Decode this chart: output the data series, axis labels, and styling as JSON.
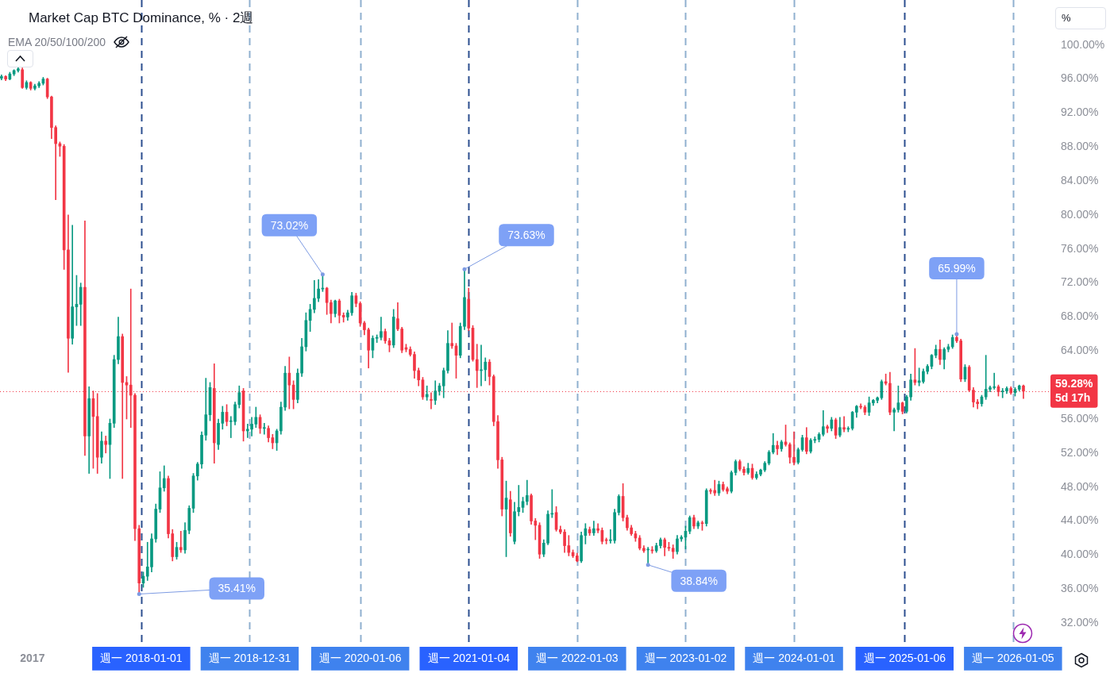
{
  "chart_data": {
    "type": "candlestick",
    "title": "Market Cap BTC Dominance, % · 2週",
    "subtitle": "EMA 20/50/100/200",
    "ylabel": "%",
    "x": [
      "2016-09-19",
      "2016-10-03",
      "2016-10-17",
      "2016-10-31",
      "2016-11-14",
      "2016-11-28",
      "2016-12-12",
      "2016-12-26",
      "2017-01-09",
      "2017-01-23",
      "2017-02-06",
      "2017-02-20",
      "2017-03-06",
      "2017-03-20",
      "2017-04-03",
      "2017-04-17",
      "2017-05-01",
      "2017-05-15",
      "2017-05-29",
      "2017-06-12",
      "2017-06-26",
      "2017-07-10",
      "2017-07-24",
      "2017-08-07",
      "2017-08-21",
      "2017-09-04",
      "2017-09-18",
      "2017-10-02",
      "2017-10-16",
      "2017-10-30",
      "2017-11-13",
      "2017-11-27",
      "2017-12-11",
      "2017-12-25",
      "2018-01-08",
      "2018-01-22",
      "2018-02-05",
      "2018-02-19",
      "2018-03-05",
      "2018-03-19",
      "2018-04-02",
      "2018-04-16",
      "2018-04-30",
      "2018-05-14",
      "2018-05-28",
      "2018-06-11",
      "2018-06-25",
      "2018-07-09",
      "2018-07-23",
      "2018-08-06",
      "2018-08-20",
      "2018-09-03",
      "2018-09-17",
      "2018-10-01",
      "2018-10-15",
      "2018-10-29",
      "2018-11-12",
      "2018-11-26",
      "2018-12-10",
      "2018-12-24",
      "2019-01-07",
      "2019-01-21",
      "2019-02-04",
      "2019-02-18",
      "2019-03-04",
      "2019-03-18",
      "2019-04-01",
      "2019-04-15",
      "2019-04-29",
      "2019-05-13",
      "2019-05-27",
      "2019-06-10",
      "2019-06-24",
      "2019-07-08",
      "2019-07-22",
      "2019-08-05",
      "2019-08-19",
      "2019-09-02",
      "2019-09-16",
      "2019-09-30",
      "2019-10-14",
      "2019-10-28",
      "2019-11-11",
      "2019-11-25",
      "2019-12-09",
      "2019-12-23",
      "2020-01-06",
      "2020-01-20",
      "2020-02-03",
      "2020-02-17",
      "2020-03-02",
      "2020-03-16",
      "2020-03-30",
      "2020-04-13",
      "2020-04-27",
      "2020-05-11",
      "2020-05-25",
      "2020-06-08",
      "2020-06-22",
      "2020-07-06",
      "2020-07-20",
      "2020-08-03",
      "2020-08-17",
      "2020-08-31",
      "2020-09-14",
      "2020-09-28",
      "2020-10-12",
      "2020-10-26",
      "2020-11-09",
      "2020-11-23",
      "2020-12-07",
      "2020-12-21",
      "2021-01-04",
      "2021-01-18",
      "2021-02-01",
      "2021-02-15",
      "2021-03-01",
      "2021-03-15",
      "2021-03-29",
      "2021-04-12",
      "2021-04-26",
      "2021-05-10",
      "2021-05-24",
      "2021-06-07",
      "2021-06-21",
      "2021-07-05",
      "2021-07-19",
      "2021-08-02",
      "2021-08-16",
      "2021-08-30",
      "2021-09-13",
      "2021-09-27",
      "2021-10-11",
      "2021-10-25",
      "2021-11-08",
      "2021-11-22",
      "2021-12-06",
      "2021-12-20",
      "2022-01-03",
      "2022-01-17",
      "2022-01-31",
      "2022-02-14",
      "2022-02-28",
      "2022-03-14",
      "2022-03-28",
      "2022-04-11",
      "2022-04-25",
      "2022-05-09",
      "2022-05-23",
      "2022-06-06",
      "2022-06-20",
      "2022-07-04",
      "2022-07-18",
      "2022-08-01",
      "2022-08-15",
      "2022-08-29",
      "2022-09-12",
      "2022-09-26",
      "2022-10-10",
      "2022-10-24",
      "2022-11-07",
      "2022-11-21",
      "2022-12-05",
      "2022-12-19",
      "2023-01-02",
      "2023-01-16",
      "2023-01-30",
      "2023-02-13",
      "2023-02-27",
      "2023-03-13",
      "2023-03-27",
      "2023-04-10",
      "2023-04-24",
      "2023-05-08",
      "2023-05-22",
      "2023-06-05",
      "2023-06-19",
      "2023-07-03",
      "2023-07-17",
      "2023-07-31",
      "2023-08-14",
      "2023-08-28",
      "2023-09-11",
      "2023-09-25",
      "2023-10-09",
      "2023-10-23",
      "2023-11-06",
      "2023-11-20",
      "2023-12-04",
      "2023-12-18",
      "2024-01-01",
      "2024-01-15",
      "2024-01-29",
      "2024-02-12",
      "2024-02-26",
      "2024-03-11",
      "2024-03-25",
      "2024-04-08",
      "2024-04-22",
      "2024-05-06",
      "2024-05-20",
      "2024-06-03",
      "2024-06-17",
      "2024-07-01",
      "2024-07-15",
      "2024-07-29",
      "2024-08-12",
      "2024-08-26",
      "2024-09-09",
      "2024-09-23",
      "2024-10-07",
      "2024-10-21",
      "2024-11-04",
      "2024-11-18",
      "2024-12-02",
      "2024-12-16",
      "2024-12-30",
      "2025-01-13",
      "2025-01-27",
      "2025-02-10",
      "2025-02-24",
      "2025-03-10",
      "2025-03-24",
      "2025-04-07",
      "2025-04-21",
      "2025-05-05",
      "2025-05-19",
      "2025-06-02",
      "2025-06-16",
      "2025-06-30",
      "2025-07-14",
      "2025-07-28",
      "2025-08-11",
      "2025-08-25",
      "2025-09-08",
      "2025-09-22",
      "2025-10-06",
      "2025-10-20",
      "2025-11-03",
      "2025-11-17",
      "2025-12-01",
      "2025-12-15",
      "2025-12-29",
      "2026-01-12",
      "2026-01-26",
      "2026-02-09"
    ],
    "ohlc": [
      [
        96.1,
        96.5,
        95.9,
        96.3
      ],
      [
        96.3,
        96.4,
        95.8,
        96.0
      ],
      [
        96.0,
        96.8,
        95.9,
        96.6
      ],
      [
        96.6,
        97.1,
        96.4,
        97.0
      ],
      [
        97.0,
        97.4,
        96.8,
        97.2
      ],
      [
        97.1,
        97.3,
        94.9,
        95.0
      ],
      [
        95.0,
        95.8,
        94.8,
        95.6
      ],
      [
        95.6,
        95.7,
        94.7,
        94.9
      ],
      [
        94.9,
        95.4,
        94.7,
        95.2
      ],
      [
        95.2,
        95.7,
        95.0,
        95.5
      ],
      [
        95.5,
        96.2,
        95.3,
        96.0
      ],
      [
        96.0,
        96.1,
        93.7,
        93.9
      ],
      [
        93.9,
        94.0,
        89.0,
        90.3
      ],
      [
        90.3,
        90.5,
        81.8,
        88.4
      ],
      [
        88.4,
        88.6,
        86.9,
        88.1
      ],
      [
        88.1,
        88.3,
        73.6,
        75.9
      ],
      [
        75.9,
        80.0,
        61.5,
        65.5
      ],
      [
        65.5,
        78.8,
        64.8,
        69.2
      ],
      [
        69.2,
        72.9,
        67.0,
        69.5
      ],
      [
        69.5,
        72.0,
        67.0,
        71.5
      ],
      [
        71.5,
        79.3,
        51.7,
        54.0
      ],
      [
        54.0,
        59.8,
        49.6,
        58.4
      ],
      [
        58.4,
        59.3,
        50.2,
        56.3
      ],
      [
        56.3,
        59.0,
        49.6,
        51.5
      ],
      [
        51.5,
        54.5,
        50.8,
        53.4
      ],
      [
        53.4,
        54.0,
        52.0,
        53.0
      ],
      [
        53.0,
        56.0,
        49.0,
        55.5
      ],
      [
        55.5,
        63.5,
        55.0,
        63.0
      ],
      [
        63.0,
        68.0,
        62.5,
        65.7
      ],
      [
        65.7,
        66.0,
        49.0,
        60.3
      ],
      [
        60.3,
        61.0,
        56.0,
        60.0
      ],
      [
        60.0,
        71.3,
        55.0,
        58.8
      ],
      [
        58.8,
        59.0,
        41.7,
        43.1
      ],
      [
        43.1,
        43.5,
        35.41,
        36.7
      ],
      [
        36.7,
        38.0,
        36.2,
        37.5
      ],
      [
        37.5,
        41.5,
        37.0,
        38.6
      ],
      [
        38.6,
        42.5,
        38.0,
        41.9
      ],
      [
        41.9,
        46.0,
        41.5,
        45.4
      ],
      [
        45.4,
        49.8,
        45.0,
        47.9
      ],
      [
        47.9,
        50.5,
        47.5,
        49.0
      ],
      [
        49.0,
        49.3,
        42.0,
        42.5
      ],
      [
        42.5,
        43.0,
        39.3,
        39.8
      ],
      [
        39.8,
        41.5,
        39.5,
        40.9
      ],
      [
        40.9,
        42.8,
        40.3,
        40.6
      ],
      [
        40.6,
        43.8,
        40.2,
        42.9
      ],
      [
        42.9,
        45.8,
        42.5,
        45.5
      ],
      [
        45.5,
        49.6,
        45.0,
        49.3
      ],
      [
        49.3,
        50.9,
        48.8,
        50.7
      ],
      [
        50.7,
        54.5,
        50.2,
        54.1
      ],
      [
        54.1,
        60.8,
        53.5,
        56.5
      ],
      [
        56.5,
        60.3,
        55.8,
        59.7
      ],
      [
        59.6,
        62.5,
        50.8,
        53.2
      ],
      [
        53.0,
        56.0,
        52.4,
        55.5
      ],
      [
        55.5,
        57.5,
        54.8,
        56.8
      ],
      [
        56.8,
        57.7,
        55.2,
        55.7
      ],
      [
        55.7,
        56.3,
        53.8,
        55.7
      ],
      [
        55.7,
        58.0,
        55.3,
        57.7
      ],
      [
        57.7,
        59.9,
        57.3,
        59.1
      ],
      [
        59.3,
        59.6,
        53.4,
        54.6
      ],
      [
        54.6,
        55.4,
        53.8,
        54.8
      ],
      [
        54.8,
        56.2,
        54.0,
        55.4
      ],
      [
        55.4,
        57.4,
        55.0,
        56.2
      ],
      [
        56.2,
        56.5,
        54.3,
        54.9
      ],
      [
        54.9,
        55.5,
        54.2,
        54.9
      ],
      [
        54.9,
        55.2,
        53.3,
        53.8
      ],
      [
        53.8,
        54.2,
        52.5,
        53.2
      ],
      [
        53.2,
        54.8,
        52.3,
        54.6
      ],
      [
        54.6,
        58.0,
        54.2,
        57.4
      ],
      [
        57.4,
        62.2,
        57.0,
        61.4
      ],
      [
        61.4,
        63.3,
        57.2,
        60.0
      ],
      [
        60.0,
        60.5,
        57.2,
        58.3
      ],
      [
        58.3,
        61.9,
        57.9,
        61.4
      ],
      [
        61.4,
        65.5,
        61.0,
        64.5
      ],
      [
        64.5,
        68.5,
        64.0,
        67.6
      ],
      [
        67.6,
        69.5,
        66.3,
        68.9
      ],
      [
        68.9,
        72.3,
        68.5,
        70.2
      ],
      [
        70.2,
        72.4,
        69.8,
        71.3
      ],
      [
        71.3,
        73.02,
        71.0,
        71.4
      ],
      [
        71.4,
        71.5,
        68.3,
        69.7
      ],
      [
        69.7,
        70.0,
        67.3,
        68.4
      ],
      [
        68.4,
        70.0,
        68.0,
        69.9
      ],
      [
        69.9,
        70.1,
        67.3,
        68.2
      ],
      [
        68.2,
        68.5,
        67.4,
        68.0
      ],
      [
        68.0,
        68.8,
        67.6,
        68.5
      ],
      [
        68.5,
        70.9,
        68.2,
        70.5
      ],
      [
        70.5,
        70.8,
        69.2,
        69.6
      ],
      [
        69.6,
        69.8,
        66.9,
        67.3
      ],
      [
        67.3,
        67.5,
        65.9,
        66.5
      ],
      [
        66.5,
        66.7,
        62.0,
        64.1
      ],
      [
        64.1,
        65.8,
        63.2,
        65.5
      ],
      [
        65.5,
        65.9,
        65.0,
        65.6
      ],
      [
        65.6,
        68.0,
        65.3,
        66.3
      ],
      [
        66.3,
        66.6,
        64.9,
        65.2
      ],
      [
        65.2,
        65.5,
        63.9,
        64.7
      ],
      [
        64.7,
        68.9,
        64.4,
        68.0
      ],
      [
        67.8,
        69.7,
        66.4,
        66.6
      ],
      [
        66.6,
        66.8,
        63.8,
        64.1
      ],
      [
        64.4,
        64.8,
        63.9,
        64.2
      ],
      [
        64.2,
        64.5,
        63.4,
        63.6
      ],
      [
        63.6,
        63.9,
        60.8,
        61.7
      ],
      [
        61.7,
        62.0,
        59.9,
        60.6
      ],
      [
        60.6,
        60.9,
        58.3,
        58.6
      ],
      [
        58.6,
        59.9,
        58.2,
        58.9
      ],
      [
        58.3,
        59.1,
        57.2,
        58.2
      ],
      [
        58.2,
        60.5,
        57.7,
        59.3
      ],
      [
        59.3,
        60.2,
        58.8,
        59.9
      ],
      [
        59.9,
        62.0,
        58.5,
        61.7
      ],
      [
        61.7,
        66.4,
        61.4,
        64.9
      ],
      [
        64.9,
        67.3,
        64.3,
        64.6
      ],
      [
        64.6,
        64.9,
        60.8,
        63.5
      ],
      [
        63.5,
        67.3,
        63.2,
        66.9
      ],
      [
        66.9,
        73.63,
        66.5,
        70.3
      ],
      [
        70.1,
        71.4,
        66.4,
        66.7
      ],
      [
        66.7,
        67.0,
        62.8,
        63.0
      ],
      [
        63.0,
        64.8,
        59.7,
        61.7
      ],
      [
        61.7,
        64.7,
        59.9,
        61.8
      ],
      [
        61.8,
        63.2,
        60.5,
        62.7
      ],
      [
        62.7,
        63.0,
        60.0,
        61.0
      ],
      [
        61.0,
        61.2,
        55.2,
        55.7
      ],
      [
        55.7,
        56.4,
        50.2,
        51.2
      ],
      [
        51.2,
        51.5,
        44.6,
        45.4
      ],
      [
        45.4,
        48.7,
        39.8,
        46.7
      ],
      [
        46.5,
        47.5,
        42.2,
        42.6
      ],
      [
        41.6,
        46.2,
        41.3,
        45.1
      ],
      [
        45.1,
        48.2,
        44.6,
        45.6
      ],
      [
        45.6,
        46.8,
        45.0,
        46.3
      ],
      [
        46.3,
        48.8,
        45.9,
        47.0
      ],
      [
        47.0,
        47.2,
        43.6,
        44.0
      ],
      [
        44.0,
        44.3,
        41.8,
        43.5
      ],
      [
        43.5,
        43.8,
        39.6,
        40.1
      ],
      [
        40.1,
        41.8,
        39.8,
        41.4
      ],
      [
        41.4,
        45.2,
        41.2,
        44.8
      ],
      [
        44.8,
        47.7,
        44.4,
        44.9
      ],
      [
        45.0,
        45.7,
        42.8,
        43.0
      ],
      [
        43.0,
        43.4,
        42.5,
        42.7
      ],
      [
        42.7,
        43.0,
        40.3,
        41.1
      ],
      [
        41.1,
        42.3,
        39.9,
        40.3
      ],
      [
        40.3,
        40.6,
        39.7,
        39.9
      ],
      [
        39.9,
        40.2,
        39.2,
        39.3
      ],
      [
        39.3,
        42.7,
        39.1,
        42.3
      ],
      [
        42.3,
        43.7,
        41.3,
        43.1
      ],
      [
        43.0,
        43.3,
        42.3,
        42.6
      ],
      [
        42.6,
        44.0,
        42.3,
        43.1
      ],
      [
        43.1,
        43.7,
        42.6,
        42.9
      ],
      [
        42.9,
        43.2,
        41.3,
        41.6
      ],
      [
        41.8,
        42.0,
        41.3,
        41.7
      ],
      [
        41.7,
        43.0,
        41.4,
        41.7
      ],
      [
        41.7,
        45.4,
        41.4,
        45.0
      ],
      [
        45.0,
        47.1,
        44.7,
        46.9
      ],
      [
        46.9,
        48.4,
        44.0,
        44.4
      ],
      [
        44.4,
        44.7,
        42.9,
        43.2
      ],
      [
        43.2,
        43.5,
        42.3,
        42.5
      ],
      [
        42.5,
        42.8,
        41.6,
        42.0
      ],
      [
        42.0,
        42.3,
        40.6,
        40.8
      ],
      [
        40.8,
        41.1,
        40.3,
        40.5
      ],
      [
        40.6,
        40.9,
        38.84,
        40.6
      ],
      [
        40.6,
        41.0,
        40.2,
        40.5
      ],
      [
        40.5,
        41.4,
        40.3,
        41.1
      ],
      [
        41.1,
        42.0,
        40.8,
        41.8
      ],
      [
        41.8,
        42.0,
        39.9,
        40.9
      ],
      [
        40.9,
        41.5,
        40.5,
        40.8
      ],
      [
        40.8,
        41.2,
        39.6,
        40.4
      ],
      [
        40.4,
        42.3,
        40.1,
        41.9
      ],
      [
        41.9,
        42.3,
        41.6,
        42.1
      ],
      [
        42.1,
        43.4,
        40.7,
        42.8
      ],
      [
        42.8,
        44.6,
        42.5,
        44.4
      ],
      [
        44.4,
        44.7,
        43.1,
        43.4
      ],
      [
        43.4,
        44.0,
        43.1,
        43.8
      ],
      [
        43.8,
        44.0,
        42.9,
        43.7
      ],
      [
        43.7,
        47.8,
        43.4,
        47.6
      ],
      [
        47.6,
        47.8,
        47.2,
        47.5
      ],
      [
        47.6,
        48.8,
        47.0,
        47.3
      ],
      [
        47.3,
        48.7,
        47.0,
        48.3
      ],
      [
        48.3,
        48.6,
        47.5,
        47.7
      ],
      [
        47.8,
        48.0,
        47.2,
        47.5
      ],
      [
        47.5,
        49.9,
        47.3,
        49.7
      ],
      [
        49.7,
        51.2,
        49.4,
        51.0
      ],
      [
        51.0,
        51.2,
        49.9,
        50.1
      ],
      [
        50.1,
        50.4,
        49.4,
        49.7
      ],
      [
        49.7,
        50.8,
        49.5,
        50.2
      ],
      [
        50.2,
        50.7,
        48.9,
        49.1
      ],
      [
        49.1,
        49.8,
        48.9,
        49.5
      ],
      [
        49.5,
        50.1,
        49.3,
        50.0
      ],
      [
        50.0,
        51.0,
        49.8,
        50.8
      ],
      [
        50.8,
        52.3,
        50.6,
        52.1
      ],
      [
        52.1,
        54.3,
        51.9,
        52.9
      ],
      [
        52.9,
        53.4,
        51.8,
        52.5
      ],
      [
        52.5,
        53.5,
        52.2,
        53.3
      ],
      [
        53.3,
        55.3,
        52.8,
        53.0
      ],
      [
        53.0,
        53.2,
        50.8,
        51.5
      ],
      [
        51.5,
        54.5,
        50.6,
        50.9
      ],
      [
        50.9,
        52.6,
        50.7,
        52.4
      ],
      [
        52.4,
        54.1,
        52.2,
        53.8
      ],
      [
        53.8,
        55.0,
        51.9,
        52.2
      ],
      [
        52.2,
        53.7,
        52.0,
        53.5
      ],
      [
        53.5,
        53.9,
        53.2,
        53.6
      ],
      [
        53.6,
        54.4,
        53.3,
        54.2
      ],
      [
        54.2,
        57.0,
        54.0,
        55.1
      ],
      [
        55.1,
        55.3,
        54.4,
        54.9
      ],
      [
        54.9,
        56.2,
        54.6,
        55.9
      ],
      [
        55.9,
        56.1,
        53.7,
        54.1
      ],
      [
        54.1,
        56.2,
        53.9,
        55.0
      ],
      [
        55.0,
        56.3,
        54.5,
        54.8
      ],
      [
        54.8,
        55.1,
        54.5,
        54.9
      ],
      [
        54.9,
        56.9,
        54.7,
        56.8
      ],
      [
        56.8,
        57.6,
        56.2,
        57.5
      ],
      [
        57.5,
        57.8,
        57.2,
        57.4
      ],
      [
        57.4,
        57.6,
        56.5,
        56.8
      ],
      [
        56.8,
        58.6,
        56.4,
        57.9
      ],
      [
        57.9,
        58.3,
        57.6,
        58.2
      ],
      [
        58.2,
        58.6,
        57.9,
        58.5
      ],
      [
        58.5,
        60.6,
        58.3,
        60.4
      ],
      [
        60.4,
        61.3,
        60.0,
        60.2
      ],
      [
        60.2,
        61.5,
        56.5,
        56.8
      ],
      [
        56.8,
        57.3,
        54.6,
        57.1
      ],
      [
        57.1,
        59.9,
        56.8,
        57.9
      ],
      [
        57.9,
        58.0,
        56.6,
        56.9
      ],
      [
        56.9,
        58.8,
        56.7,
        58.6
      ],
      [
        58.6,
        61.3,
        58.2,
        60.6
      ],
      [
        60.6,
        64.3,
        60.0,
        60.3
      ],
      [
        60.3,
        62.0,
        59.9,
        60.5
      ],
      [
        60.4,
        61.9,
        60.2,
        61.6
      ],
      [
        61.6,
        62.4,
        61.3,
        62.2
      ],
      [
        62.2,
        63.6,
        61.9,
        63.5
      ],
      [
        63.5,
        64.7,
        63.2,
        64.2
      ],
      [
        64.2,
        65.3,
        62.4,
        63.0
      ],
      [
        63.0,
        64.4,
        61.9,
        64.2
      ],
      [
        64.2,
        64.8,
        63.9,
        64.5
      ],
      [
        64.5,
        65.9,
        64.3,
        65.6
      ],
      [
        65.6,
        65.99,
        65.0,
        65.2
      ],
      [
        65.2,
        65.4,
        60.4,
        60.7
      ],
      [
        60.7,
        62.4,
        60.4,
        62.1
      ],
      [
        62.1,
        62.3,
        59.2,
        59.4
      ],
      [
        59.4,
        59.7,
        57.4,
        58.0
      ],
      [
        58.0,
        58.3,
        57.2,
        57.8
      ],
      [
        57.8,
        58.8,
        57.5,
        58.6
      ],
      [
        58.6,
        63.5,
        58.3,
        59.5
      ],
      [
        59.5,
        59.9,
        59.2,
        59.7
      ],
      [
        59.7,
        61.4,
        59.5,
        59.8
      ],
      [
        59.8,
        60.0,
        58.7,
        59.2
      ],
      [
        59.2,
        59.6,
        58.5,
        59.3
      ],
      [
        59.3,
        59.8,
        59.0,
        59.6
      ],
      [
        59.6,
        59.8,
        58.9,
        59.1
      ],
      [
        59.1,
        59.7,
        58.7,
        59.5
      ],
      [
        59.5,
        60.0,
        59.3,
        59.9
      ],
      [
        59.9,
        60.0,
        58.4,
        59.28
      ]
    ],
    "xlim": [
      "2016-09-14",
      "2026-05-08"
    ],
    "xticks": [
      "2017",
      {
        "value": "2018-01-01",
        "label": "週一 2018-01-01"
      },
      {
        "value": "2018-12-31",
        "label": "週一 2018-12-31"
      },
      {
        "value": "2020-01-06",
        "label": "週一 2020-01-06"
      },
      {
        "value": "2021-01-04",
        "label": "週一 2021-01-04"
      },
      {
        "value": "2022-01-03",
        "label": "週一 2022-01-03"
      },
      {
        "value": "2023-01-02",
        "label": "週一 2023-01-02"
      },
      {
        "value": "2024-01-01",
        "label": "週一 2024-01-01"
      },
      {
        "value": "2025-01-06",
        "label": "週一 2025-01-06"
      },
      {
        "value": "2026-01-05",
        "label": "週一 2026-01-05"
      }
    ],
    "ylim": [
      29.2,
      105.3
    ],
    "yticks": [
      {
        "value": 32,
        "label": "32.00%"
      },
      {
        "value": 36,
        "label": "36.00%"
      },
      {
        "value": 40,
        "label": "40.00%"
      },
      {
        "value": 44,
        "label": "44.00%"
      },
      {
        "value": 48,
        "label": "48.00%"
      },
      {
        "value": 52,
        "label": "52.00%"
      },
      {
        "value": 56,
        "label": "56.00%"
      },
      {
        "value": 64,
        "label": "64.00%"
      },
      {
        "value": 68,
        "label": "68.00%"
      },
      {
        "value": 72,
        "label": "72.00%"
      },
      {
        "value": 76,
        "label": "76.00%"
      },
      {
        "value": 80,
        "label": "80.00%"
      },
      {
        "value": 84,
        "label": "84.00%"
      },
      {
        "value": 88,
        "label": "88.00%"
      },
      {
        "value": 92,
        "label": "92.00%"
      },
      {
        "value": 96,
        "label": "96.00%"
      },
      {
        "value": 100,
        "label": "100.00%"
      }
    ],
    "ref_lines": [
      {
        "axis": "x",
        "value": "2018-01-01",
        "color": "#2c4f8f",
        "line_style": "dashed"
      },
      {
        "axis": "x",
        "value": "2018-12-31",
        "color": "#8fb0cf",
        "line_style": "dashed"
      },
      {
        "axis": "x",
        "value": "2020-01-06",
        "color": "#8fb0cf",
        "line_style": "dashed"
      },
      {
        "axis": "x",
        "value": "2021-01-04",
        "color": "#2c4f8f",
        "line_style": "dashed"
      },
      {
        "axis": "x",
        "value": "2022-01-03",
        "color": "#8fb0cf",
        "line_style": "dashed"
      },
      {
        "axis": "x",
        "value": "2023-01-02",
        "color": "#8fb0cf",
        "line_style": "dashed"
      },
      {
        "axis": "x",
        "value": "2024-01-01",
        "color": "#8fb0cf",
        "line_style": "dashed"
      },
      {
        "axis": "x",
        "value": "2025-01-06",
        "color": "#2c4f8f",
        "line_style": "dashed"
      },
      {
        "axis": "x",
        "value": "2026-01-05",
        "color": "#8fb0cf",
        "line_style": "dashed"
      },
      {
        "axis": "y",
        "value": 59.28,
        "label": "59.28%\n5d 17h",
        "color": "#f23645",
        "line_style": "dotted"
      }
    ],
    "annotations": [
      {
        "text": "35.41%",
        "x": "2017-12-25",
        "y": 35.41
      },
      {
        "text": "73.02%",
        "x": "2019-09-02",
        "y": 73.02
      },
      {
        "text": "73.63%",
        "x": "2020-12-21",
        "y": 73.63
      },
      {
        "text": "38.84%",
        "x": "2022-08-29",
        "y": 38.84
      },
      {
        "text": "65.99%",
        "x": "2025-06-30",
        "y": 65.99
      }
    ]
  }
}
